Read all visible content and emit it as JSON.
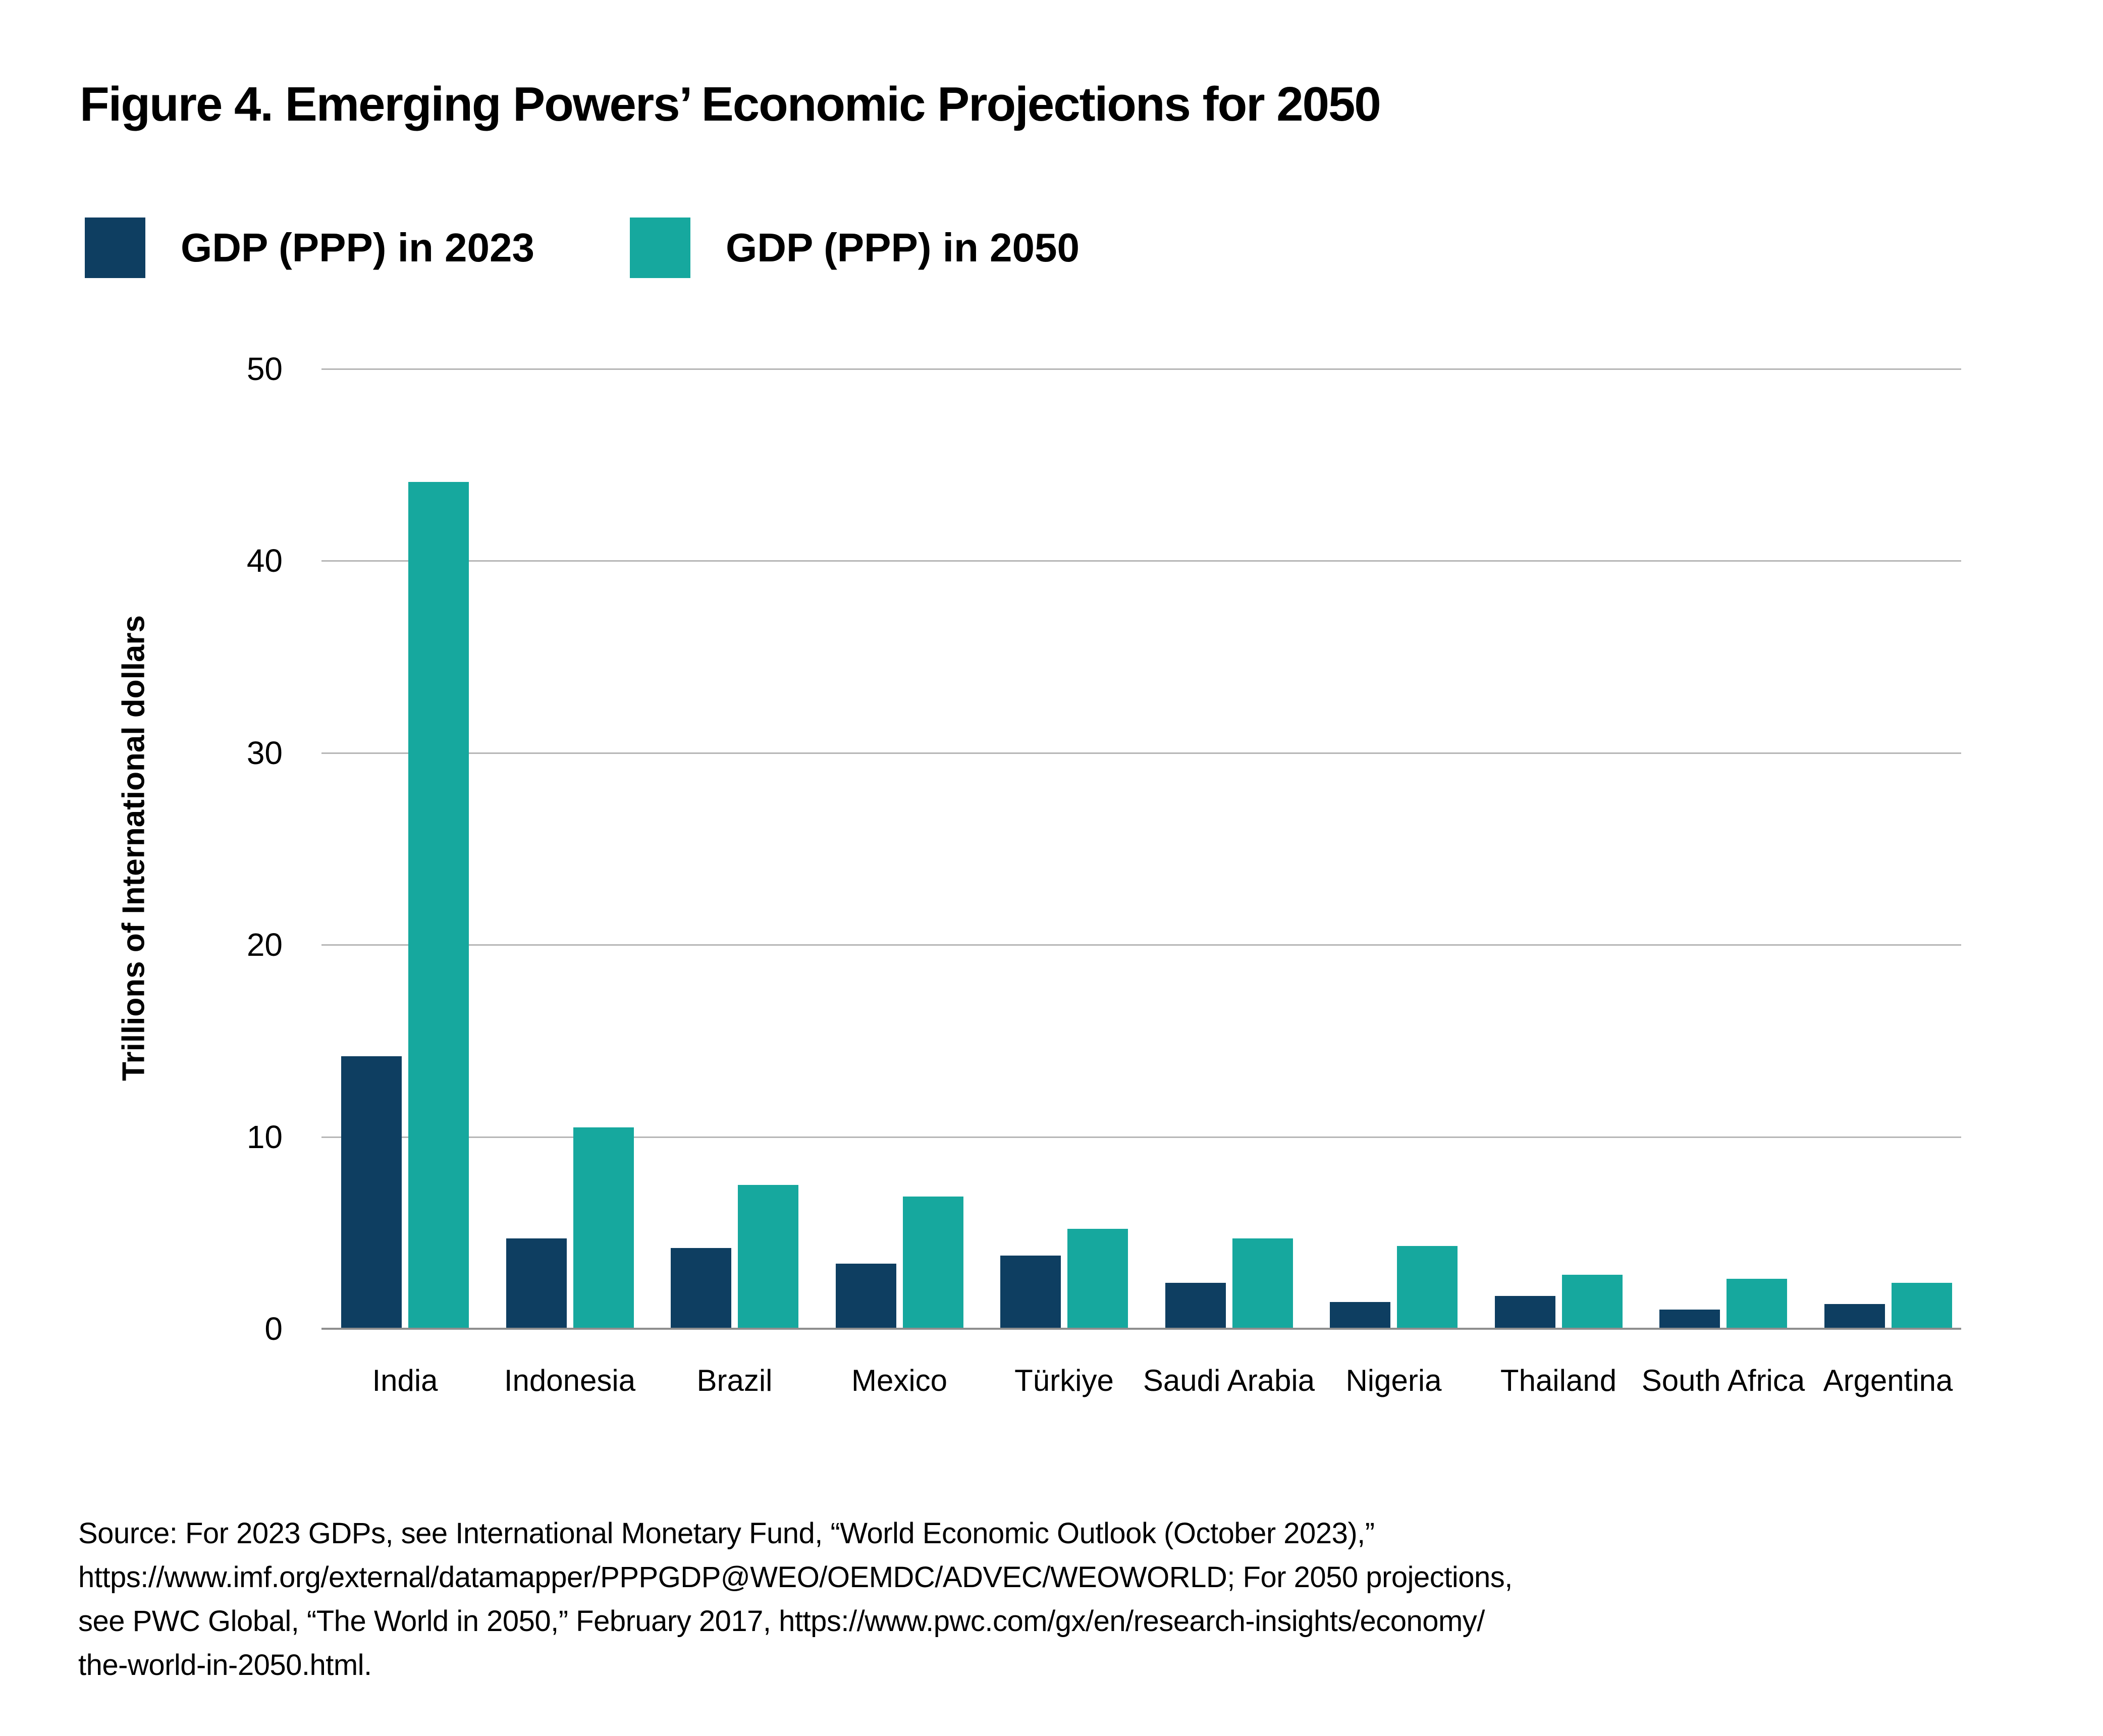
{
  "title": "Figure 4. Emerging Powers’ Economic Projections for 2050",
  "legend": {
    "items": [
      {
        "label": "GDP (PPP) in 2023",
        "color": "#0e3e61"
      },
      {
        "label": "GDP (PPP) in 2050",
        "color": "#16a89e"
      }
    ]
  },
  "chart_data": {
    "type": "bar",
    "title": "Figure 4. Emerging Powers’ Economic Projections for 2050",
    "categories": [
      "India",
      "Indonesia",
      "Brazil",
      "Mexico",
      "Türkiye",
      "Saudi Arabia",
      "Nigeria",
      "Thailand",
      "South Africa",
      "Argentina"
    ],
    "category_keys": [
      "india",
      "indonesia",
      "brazil",
      "mexico",
      "turkiye",
      "saudi-arabia",
      "nigeria",
      "thailand",
      "south-africa",
      "argentina"
    ],
    "series": [
      {
        "name": "GDP (PPP) in 2023",
        "color": "#0e3e61",
        "values": [
          14.2,
          4.7,
          4.2,
          3.4,
          3.8,
          2.4,
          1.4,
          1.7,
          1.0,
          1.3
        ]
      },
      {
        "name": "GDP (PPP) in 2050",
        "color": "#16a89e",
        "values": [
          44.1,
          10.5,
          7.5,
          6.9,
          5.2,
          4.7,
          4.3,
          2.8,
          2.6,
          2.4
        ]
      }
    ],
    "xlabel": "",
    "ylabel": "Trillions of International dollars",
    "ylim": [
      0,
      50
    ],
    "yticks": [
      0,
      10,
      20,
      30,
      40,
      50
    ],
    "grid": true,
    "legend_position": "top-left"
  },
  "source": {
    "lines": [
      "Source: For 2023 GDPs, see International Monetary Fund, “World Economic Outlook (October 2023),”",
      "https://www.imf.org/external/datamapper/PPPGDP@WEO/OEMDC/ADVEC/WEOWORLD; For 2050 projections,",
      "see PWC Global, “The World in 2050,” February 2017, https://www.pwc.com/gx/en/research-insights/economy/",
      "the-world-in-2050.html."
    ]
  },
  "colors": {
    "navy": "#0e3e61",
    "teal": "#16a89e",
    "gridline": "#b6b6b6",
    "axis_line": "#8e8e8e",
    "text": "#000000"
  }
}
